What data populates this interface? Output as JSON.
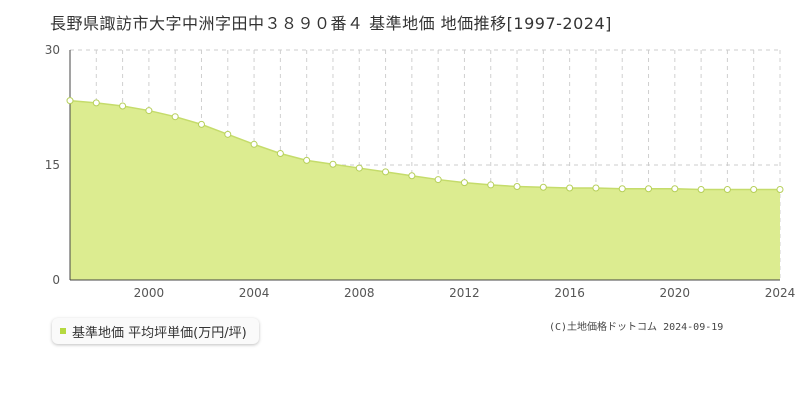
{
  "title": "長野県諏訪市大字中洲字田中３８９０番４ 基準地価 地価推移[1997-2024]",
  "legend_label": "基準地価 平均坪単価(万円/坪)",
  "credit": "(C)土地価格ドットコム 2024-09-19",
  "colors": {
    "fill": "#dcec90",
    "line": "#c5dc6b",
    "marker_stroke": "#b6cf5a",
    "legend_swatch": "#b5d940"
  },
  "chart_data": {
    "type": "area",
    "title": "長野県諏訪市大字中洲字田中３８９０番４ 基準地価 地価推移[1997-2024]",
    "xlabel": "",
    "ylabel": "",
    "xlim": [
      1997,
      2024
    ],
    "ylim": [
      0,
      30
    ],
    "yticks": [
      0,
      15,
      30
    ],
    "xticks": [
      2000,
      2004,
      2008,
      2012,
      2016,
      2020,
      2024
    ],
    "grid": true,
    "legend": "bottom-left",
    "series": [
      {
        "name": "基準地価 平均坪単価(万円/坪)",
        "x": [
          1997,
          1998,
          1999,
          2000,
          2001,
          2002,
          2003,
          2004,
          2005,
          2006,
          2007,
          2008,
          2009,
          2010,
          2011,
          2012,
          2013,
          2014,
          2015,
          2016,
          2017,
          2018,
          2019,
          2020,
          2021,
          2022,
          2023,
          2024
        ],
        "values": [
          23.4,
          23.1,
          22.7,
          22.1,
          21.3,
          20.3,
          19.0,
          17.7,
          16.5,
          15.6,
          15.1,
          14.6,
          14.1,
          13.6,
          13.1,
          12.7,
          12.4,
          12.2,
          12.1,
          12.0,
          12.0,
          11.9,
          11.9,
          11.9,
          11.8,
          11.8,
          11.8,
          11.8
        ]
      }
    ]
  }
}
